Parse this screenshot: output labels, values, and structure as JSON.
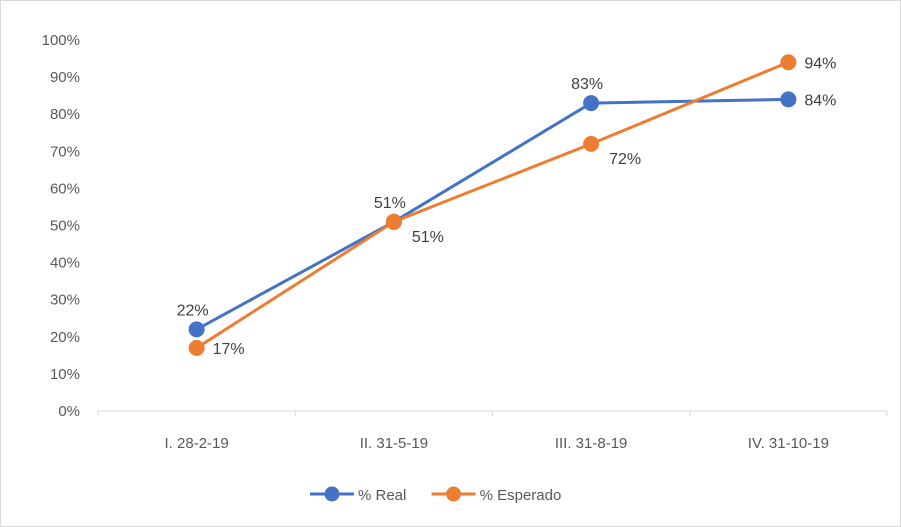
{
  "chart_data": {
    "type": "line",
    "title": "",
    "xlabel": "",
    "ylabel": "",
    "categories": [
      "I. 28-2-19",
      "II. 31-5-19",
      "III. 31-8-19",
      "IV. 31-10-19"
    ],
    "ylim": [
      0,
      100
    ],
    "yticks": [
      0,
      10,
      20,
      30,
      40,
      50,
      60,
      70,
      80,
      90,
      100
    ],
    "ytick_format": "%",
    "grid": false,
    "legend": "bottom",
    "series": [
      {
        "name": "% Real",
        "color": "#4472c4",
        "values": [
          22,
          51,
          83,
          84
        ],
        "labels": [
          "22%",
          "51%",
          "83%",
          "84%"
        ],
        "label_positions": [
          "above",
          "above",
          "above",
          "right"
        ]
      },
      {
        "name": "% Esperado",
        "color": "#ed7d31",
        "values": [
          17,
          51,
          72,
          94
        ],
        "labels": [
          "17%",
          "51%",
          "72%",
          "94%"
        ],
        "label_positions": [
          "right",
          "below-right",
          "below-right",
          "right"
        ]
      }
    ]
  }
}
